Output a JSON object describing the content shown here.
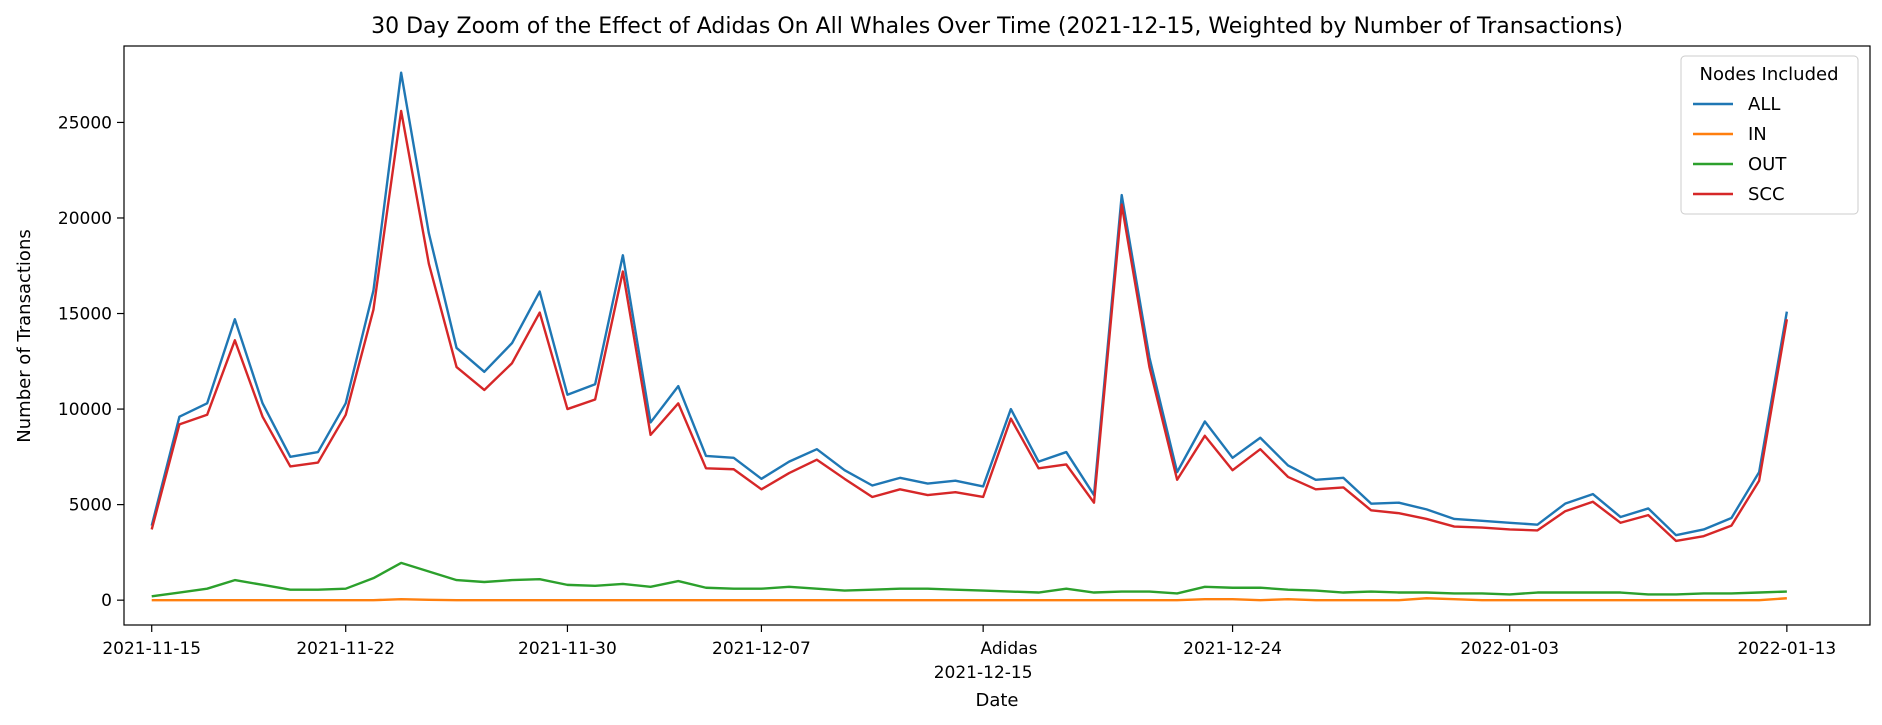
{
  "chart_data": {
    "type": "line",
    "title": "30 Day Zoom of the Effect of Adidas On All Whales Over Time (2021-12-15, Weighted by Number of Transactions)",
    "xlabel": "Date",
    "ylabel": "Number of Transactions",
    "event_label": "Adidas",
    "event_date": "2021-12-15",
    "legend": {
      "title": "Nodes Included",
      "placement": "top-right"
    },
    "grid": false,
    "xlim": [
      "2021-11-14",
      "2022-01-16"
    ],
    "ylim": [
      -1300,
      29000
    ],
    "x_tick_labels": [
      {
        "label": "2021-11-15",
        "date": "2021-11-15"
      },
      {
        "label": "2021-11-22",
        "date": "2021-11-22"
      },
      {
        "label": "2021-11-30",
        "date": "2021-11-30"
      },
      {
        "label": "2021-12-07",
        "date": "2021-12-07"
      },
      {
        "label": "2021-12-15",
        "date": "2021-12-15"
      },
      {
        "label": "2021-12-24",
        "date": "2021-12-24"
      },
      {
        "label": "2022-01-03",
        "date": "2022-01-03"
      },
      {
        "label": "2022-01-13",
        "date": "2022-01-13"
      }
    ],
    "y_ticks": [
      0,
      5000,
      10000,
      15000,
      20000,
      25000
    ],
    "dates": [
      "2021-11-15",
      "2021-11-16",
      "2021-11-17",
      "2021-11-18",
      "2021-11-19",
      "2021-11-20",
      "2021-11-21",
      "2021-11-22",
      "2021-11-23",
      "2021-11-24",
      "2021-11-25",
      "2021-11-26",
      "2021-11-27",
      "2021-11-28",
      "2021-11-29",
      "2021-11-30",
      "2021-12-01",
      "2021-12-02",
      "2021-12-03",
      "2021-12-04",
      "2021-12-05",
      "2021-12-06",
      "2021-12-07",
      "2021-12-08",
      "2021-12-09",
      "2021-12-10",
      "2021-12-11",
      "2021-12-12",
      "2021-12-13",
      "2021-12-14",
      "2021-12-15",
      "2021-12-16",
      "2021-12-17",
      "2021-12-18",
      "2021-12-19",
      "2021-12-20",
      "2021-12-21",
      "2021-12-22",
      "2021-12-23",
      "2021-12-24",
      "2021-12-25",
      "2021-12-26",
      "2021-12-27",
      "2021-12-28",
      "2021-12-29",
      "2021-12-30",
      "2021-12-31",
      "2022-01-01",
      "2022-01-02",
      "2022-01-03",
      "2022-01-04",
      "2022-01-05",
      "2022-01-06",
      "2022-01-07",
      "2022-01-08",
      "2022-01-09",
      "2022-01-10",
      "2022-01-11",
      "2022-01-12",
      "2022-01-13"
    ],
    "series": [
      {
        "name": "ALL",
        "color": "#1f77b4",
        "values": [
          3900,
          9600,
          10300,
          14700,
          10300,
          7500,
          7750,
          10300,
          16200,
          27600,
          19200,
          13200,
          11950,
          13450,
          16150,
          10750,
          11300,
          18050,
          9300,
          11200,
          7550,
          7450,
          6350,
          7250,
          7900,
          6800,
          6000,
          6400,
          6100,
          6250,
          5950,
          10000,
          7250,
          7750,
          5500,
          21200,
          12700,
          6700,
          9350,
          7450,
          8500,
          7050,
          6300,
          6400,
          5050,
          5100,
          4750,
          4250,
          4150,
          4050,
          3950,
          5050,
          5550,
          4350,
          4800,
          3400,
          3700,
          4300,
          6700,
          15100
        ]
      },
      {
        "name": "IN",
        "color": "#ff7f0e",
        "values": [
          0,
          0,
          0,
          0,
          0,
          0,
          0,
          0,
          0,
          50,
          20,
          0,
          0,
          0,
          0,
          0,
          0,
          0,
          0,
          0,
          0,
          0,
          0,
          0,
          0,
          0,
          0,
          0,
          0,
          0,
          0,
          0,
          0,
          0,
          0,
          0,
          0,
          0,
          50,
          50,
          0,
          50,
          0,
          0,
          0,
          0,
          100,
          50,
          0,
          0,
          0,
          0,
          0,
          0,
          0,
          0,
          0,
          0,
          0,
          100
        ]
      },
      {
        "name": "OUT",
        "color": "#2ca02c",
        "values": [
          200,
          400,
          600,
          1050,
          800,
          550,
          550,
          600,
          1150,
          1950,
          1500,
          1050,
          950,
          1050,
          1100,
          800,
          750,
          850,
          700,
          1000,
          650,
          600,
          600,
          700,
          600,
          500,
          550,
          600,
          600,
          550,
          500,
          450,
          400,
          600,
          400,
          450,
          450,
          350,
          700,
          650,
          650,
          550,
          500,
          400,
          450,
          400,
          400,
          350,
          350,
          300,
          400,
          400,
          400,
          400,
          300,
          300,
          350,
          350,
          400,
          450
        ]
      },
      {
        "name": "SCC",
        "color": "#d62728",
        "values": [
          3700,
          9200,
          9700,
          13600,
          9600,
          7000,
          7200,
          9700,
          15200,
          25600,
          17600,
          12200,
          11000,
          12400,
          15050,
          10000,
          10500,
          17200,
          8650,
          10300,
          6900,
          6850,
          5800,
          6650,
          7350,
          6350,
          5400,
          5800,
          5500,
          5650,
          5400,
          9500,
          6900,
          7100,
          5100,
          20700,
          12200,
          6300,
          8600,
          6800,
          7900,
          6450,
          5800,
          5900,
          4700,
          4550,
          4250,
          3850,
          3800,
          3700,
          3650,
          4650,
          5150,
          4050,
          4450,
          3100,
          3350,
          3900,
          6250,
          14700
        ]
      }
    ]
  }
}
